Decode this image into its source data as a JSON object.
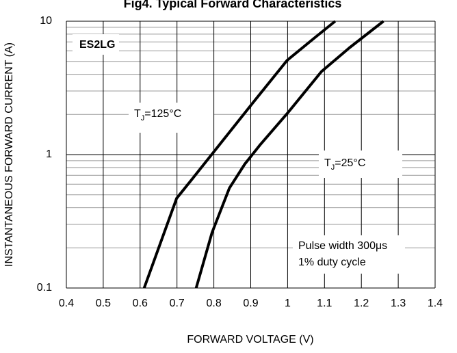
{
  "chart_data": {
    "type": "line",
    "title": "Fig4. Typical Forward Characteristics",
    "xlabel": "FORWARD VOLTAGE (V)",
    "ylabel": "INSTANTANEOUS FORWARD CURRENT (A)",
    "xlim": [
      0.4,
      1.4
    ],
    "xticks": [
      0.4,
      0.5,
      0.6,
      0.7,
      0.8,
      0.9,
      1,
      1.1,
      1.2,
      1.3,
      1.4
    ],
    "ylim": [
      0.1,
      10
    ],
    "yticks": [
      0.1,
      1,
      10
    ],
    "yminorticks": [
      0.2,
      0.3,
      0.4,
      0.5,
      0.6,
      0.7,
      0.8,
      0.9,
      2,
      3,
      4,
      5,
      6,
      7,
      8,
      9
    ],
    "ylog": true,
    "grid": true,
    "series": [
      {
        "color": "#000000",
        "x": [
          0.611,
          0.699,
          0.74,
          0.8,
          0.906,
          0.999,
          1.073,
          1.129
        ],
        "values": [
          0.1,
          0.47,
          0.65,
          1.05,
          2.45,
          5.1,
          7.5,
          10
        ]
      },
      {
        "color": "#000000",
        "x": [
          0.752,
          0.795,
          0.842,
          0.884,
          0.925,
          1.0,
          1.092,
          1.167,
          1.26
        ],
        "values": [
          0.1,
          0.26,
          0.56,
          0.85,
          1.18,
          2.05,
          4.2,
          6.3,
          10
        ]
      }
    ],
    "annotations": {
      "device": "ES2LG",
      "hot": {
        "symbol": "T",
        "sub": "J",
        "rest": "=125°C"
      },
      "cold": {
        "symbol": "T",
        "sub": "J",
        "rest": "=25°C"
      },
      "pulse": [
        "Pulse width 300μs",
        "1% duty cycle"
      ]
    }
  }
}
